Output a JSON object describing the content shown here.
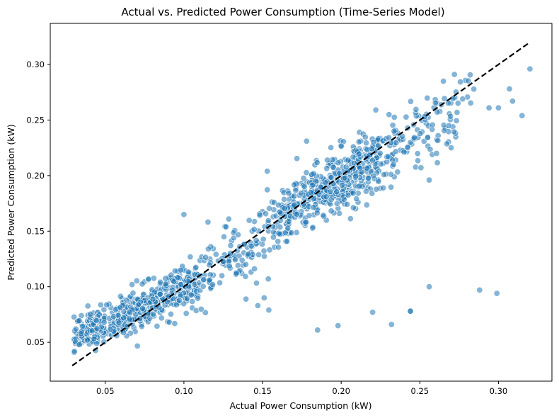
{
  "chart_data": {
    "type": "scatter",
    "title": "Actual vs. Predicted Power Consumption (Time-Series Model)",
    "xlabel": "Actual Power Consumption (kW)",
    "ylabel": "Predicted Power Consumption (kW)",
    "xlim": [
      0.015,
      0.334
    ],
    "ylim": [
      0.015,
      0.337
    ],
    "x_ticks": [
      0.05,
      0.1,
      0.15,
      0.2,
      0.25,
      0.3
    ],
    "x_tick_labels": [
      "0.05",
      "0.10",
      "0.15",
      "0.20",
      "0.25",
      "0.30"
    ],
    "y_ticks": [
      0.05,
      0.1,
      0.15,
      0.2,
      0.25,
      0.3
    ],
    "y_tick_labels": [
      "0.05",
      "0.10",
      "0.15",
      "0.20",
      "0.25",
      "0.30"
    ],
    "grid": false,
    "legend": "none",
    "reference_line": {
      "style": "dashed",
      "color": "#000000",
      "from": [
        0.029,
        0.029
      ],
      "to": [
        0.32,
        0.32
      ]
    },
    "point_color": "#1f77b4",
    "point_alpha": 0.55,
    "outliers": [
      [
        0.147,
        0.083
      ],
      [
        0.151,
        0.09
      ],
      [
        0.154,
        0.079
      ],
      [
        0.185,
        0.061
      ],
      [
        0.198,
        0.065
      ],
      [
        0.22,
        0.077
      ],
      [
        0.232,
        0.066
      ],
      [
        0.244,
        0.078
      ],
      [
        0.256,
        0.1
      ],
      [
        0.288,
        0.097
      ],
      [
        0.299,
        0.094
      ],
      [
        0.1,
        0.165
      ],
      [
        0.153,
        0.204
      ],
      [
        0.256,
        0.196
      ],
      [
        0.315,
        0.254
      ],
      [
        0.32,
        0.296
      ],
      [
        0.307,
        0.278
      ],
      [
        0.309,
        0.267
      ],
      [
        0.294,
        0.261
      ],
      [
        0.3,
        0.261
      ],
      [
        0.272,
        0.291
      ],
      [
        0.265,
        0.285
      ],
      [
        0.244,
        0.078
      ],
      [
        0.178,
        0.231
      ],
      [
        0.222,
        0.259
      ]
    ],
    "clusters": [
      {
        "x_start": 0.03,
        "x_end": 0.07,
        "count": 230,
        "slope": 0.62,
        "intercept": 0.036,
        "spread": 0.0085
      },
      {
        "x_start": 0.07,
        "x_end": 0.11,
        "count": 250,
        "slope": 0.62,
        "intercept": 0.036,
        "spread": 0.0095
      },
      {
        "x_start": 0.11,
        "x_end": 0.16,
        "count": 130,
        "slope": 1.05,
        "intercept": -0.012,
        "spread": 0.016
      },
      {
        "x_start": 0.16,
        "x_end": 0.225,
        "count": 430,
        "slope": 0.88,
        "intercept": 0.02,
        "spread": 0.014
      },
      {
        "x_start": 0.225,
        "x_end": 0.275,
        "count": 120,
        "slope": 0.75,
        "intercept": 0.048,
        "spread": 0.016
      },
      {
        "x_start": 0.275,
        "x_end": 0.285,
        "count": 8,
        "slope": 0.75,
        "intercept": 0.06,
        "spread": 0.01
      }
    ]
  }
}
